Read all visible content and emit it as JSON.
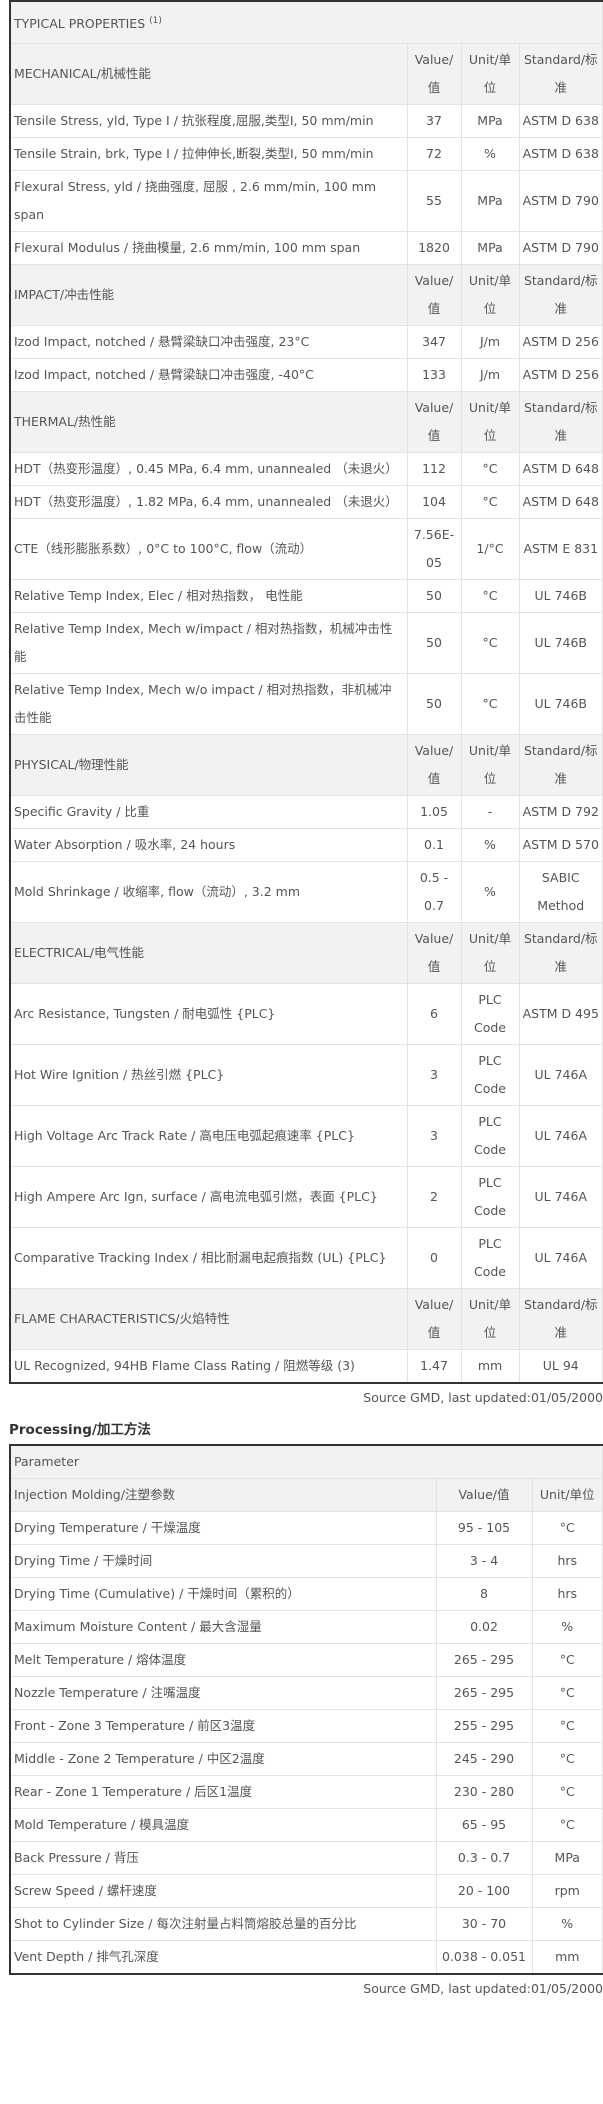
{
  "properties": {
    "title": "TYPICAL PROPERTIES",
    "title_note": "(1)",
    "sections": [
      {
        "header": "MECHANICAL/机械性能",
        "value_label": "Value/值",
        "unit_label": "Unit/单位",
        "standard_label": "Standard/标准",
        "rows": [
          {
            "name": "Tensile Stress, yld, Type I / 抗张程度,屈服,类型I, 50 mm/min",
            "value": "37",
            "unit": "MPa",
            "standard": "ASTM D 638"
          },
          {
            "name": "Tensile Strain, brk, Type I / 拉伸伸长,断裂,类型I, 50 mm/min",
            "value": "72",
            "unit": "%",
            "standard": "ASTM D 638"
          },
          {
            "name": "Flexural Stress, yld / 挠曲强度, 屈服 , 2.6 mm/min, 100 mm span",
            "value": "55",
            "unit": "MPa",
            "standard": "ASTM D 790"
          },
          {
            "name": "Flexural Modulus / 挠曲模量, 2.6 mm/min, 100 mm span",
            "value": "1820",
            "unit": "MPa",
            "standard": "ASTM D 790"
          }
        ]
      },
      {
        "header": "IMPACT/冲击性能",
        "value_label": "Value/值",
        "unit_label": "Unit/单位",
        "standard_label": "Standard/标准",
        "rows": [
          {
            "name": "Izod Impact, notched / 悬臂梁缺口冲击强度, 23°C",
            "value": "347",
            "unit": "J/m",
            "standard": "ASTM D 256"
          },
          {
            "name": "Izod Impact, notched / 悬臂梁缺口冲击强度, -40°C",
            "value": "133",
            "unit": "J/m",
            "standard": "ASTM D 256"
          }
        ]
      },
      {
        "header": "THERMAL/热性能",
        "value_label": "Value/值",
        "unit_label": "Unit/单位",
        "standard_label": "Standard/标准",
        "rows": [
          {
            "name": "HDT（热变形温度）, 0.45 MPa, 6.4 mm, unannealed （未退火）",
            "value": "112",
            "unit": "°C",
            "standard": "ASTM D 648"
          },
          {
            "name": "HDT（热变形温度）, 1.82 MPa, 6.4 mm, unannealed （未退火）",
            "value": "104",
            "unit": "°C",
            "standard": "ASTM D 648"
          },
          {
            "name": "CTE（线形膨胀系数）, 0°C to 100°C, flow（流动）",
            "value": "7.56E-05",
            "unit": "1/°C",
            "standard": "ASTM E 831"
          },
          {
            "name": "Relative Temp Index, Elec / 相对热指数， 电性能",
            "value": "50",
            "unit": "°C",
            "standard": "UL 746B"
          },
          {
            "name": "Relative Temp Index, Mech w/impact / 相对热指数，机械冲击性能",
            "value": "50",
            "unit": "°C",
            "standard": "UL 746B"
          },
          {
            "name": "Relative Temp Index, Mech w/o impact / 相对热指数，非机械冲击性能",
            "value": "50",
            "unit": "°C",
            "standard": "UL 746B"
          }
        ]
      },
      {
        "header": "PHYSICAL/物理性能",
        "value_label": "Value/值",
        "unit_label": "Unit/单位",
        "standard_label": "Standard/标准",
        "rows": [
          {
            "name": "Specific Gravity / 比重",
            "value": "1.05",
            "unit": "-",
            "standard": "ASTM D 792"
          },
          {
            "name": "Water Absorption / 吸水率, 24 hours",
            "value": "0.1",
            "unit": "%",
            "standard": "ASTM D 570"
          },
          {
            "name": "Mold Shrinkage / 收缩率, flow（流动）, 3.2 mm",
            "value": "0.5 - 0.7",
            "unit": "%",
            "standard": "SABIC Method"
          }
        ]
      },
      {
        "header": "ELECTRICAL/电气性能",
        "value_label": "Value/值",
        "unit_label": "Unit/单位",
        "standard_label": "Standard/标准",
        "rows": [
          {
            "name": "Arc Resistance, Tungsten / 耐电弧性 {PLC}",
            "value": "6",
            "unit": "PLC Code",
            "standard": "ASTM D 495"
          },
          {
            "name": "Hot Wire Ignition / 热丝引燃 {PLC}",
            "value": "3",
            "unit": "PLC Code",
            "standard": "UL 746A"
          },
          {
            "name": "High Voltage Arc Track Rate / 高电压电弧起痕速率 {PLC}",
            "value": "3",
            "unit": "PLC Code",
            "standard": "UL 746A"
          },
          {
            "name": "High Ampere Arc Ign, surface / 高电流电弧引燃，表面 {PLC}",
            "value": "2",
            "unit": "PLC Code",
            "standard": "UL 746A"
          },
          {
            "name": "Comparative Tracking Index / 相比耐漏电起痕指数 (UL) {PLC}",
            "value": "0",
            "unit": "PLC Code",
            "standard": "UL 746A"
          }
        ]
      },
      {
        "header": "FLAME CHARACTERISTICS/火焰特性",
        "value_label": "Value/值",
        "unit_label": "Unit/单位",
        "standard_label": "Standard/标准",
        "rows": [
          {
            "name": "UL Recognized, 94HB Flame Class Rating / 阻燃等级 (3)",
            "value": "1.47",
            "unit": "mm",
            "standard": "UL 94"
          }
        ]
      }
    ],
    "source": "Source GMD, last updated:01/05/2000"
  },
  "processing": {
    "title": "Processing/加工方法",
    "parameter_label": "Parameter",
    "header": "Injection Molding/注塑参数",
    "value_label": "Value/值",
    "unit_label": "Unit/单位",
    "rows": [
      {
        "name": "Drying Temperature / 干燥温度",
        "value": "95 - 105",
        "unit": "°C"
      },
      {
        "name": "Drying Time / 干燥时间",
        "value": "3 - 4",
        "unit": "hrs"
      },
      {
        "name": "Drying Time (Cumulative) / 干燥时间（累积的）",
        "value": "8",
        "unit": "hrs"
      },
      {
        "name": "Maximum Moisture Content / 最大含湿量",
        "value": "0.02",
        "unit": "%"
      },
      {
        "name": "Melt Temperature / 熔体温度",
        "value": "265 - 295",
        "unit": "°C"
      },
      {
        "name": "Nozzle Temperature / 注嘴温度",
        "value": "265 - 295",
        "unit": "°C"
      },
      {
        "name": "Front - Zone 3 Temperature / 前区3温度",
        "value": "255 - 295",
        "unit": "°C"
      },
      {
        "name": "Middle - Zone 2 Temperature / 中区2温度",
        "value": "245 - 290",
        "unit": "°C"
      },
      {
        "name": "Rear - Zone 1 Temperature / 后区1温度",
        "value": "230 - 280",
        "unit": "°C"
      },
      {
        "name": "Mold Temperature / 模具温度",
        "value": "65 - 95",
        "unit": "°C"
      },
      {
        "name": "Back Pressure / 背压",
        "value": "0.3 - 0.7",
        "unit": "MPa"
      },
      {
        "name": "Screw Speed / 螺杆速度",
        "value": "20 - 100",
        "unit": "rpm"
      },
      {
        "name": "Shot to Cylinder Size / 每次注射量占料筒熔胶总量的百分比",
        "value": "30 - 70",
        "unit": "%"
      },
      {
        "name": "Vent Depth / 排气孔深度",
        "value": "0.038 - 0.051",
        "unit": "mm"
      }
    ],
    "source": "Source GMD, last updated:01/05/2000"
  }
}
